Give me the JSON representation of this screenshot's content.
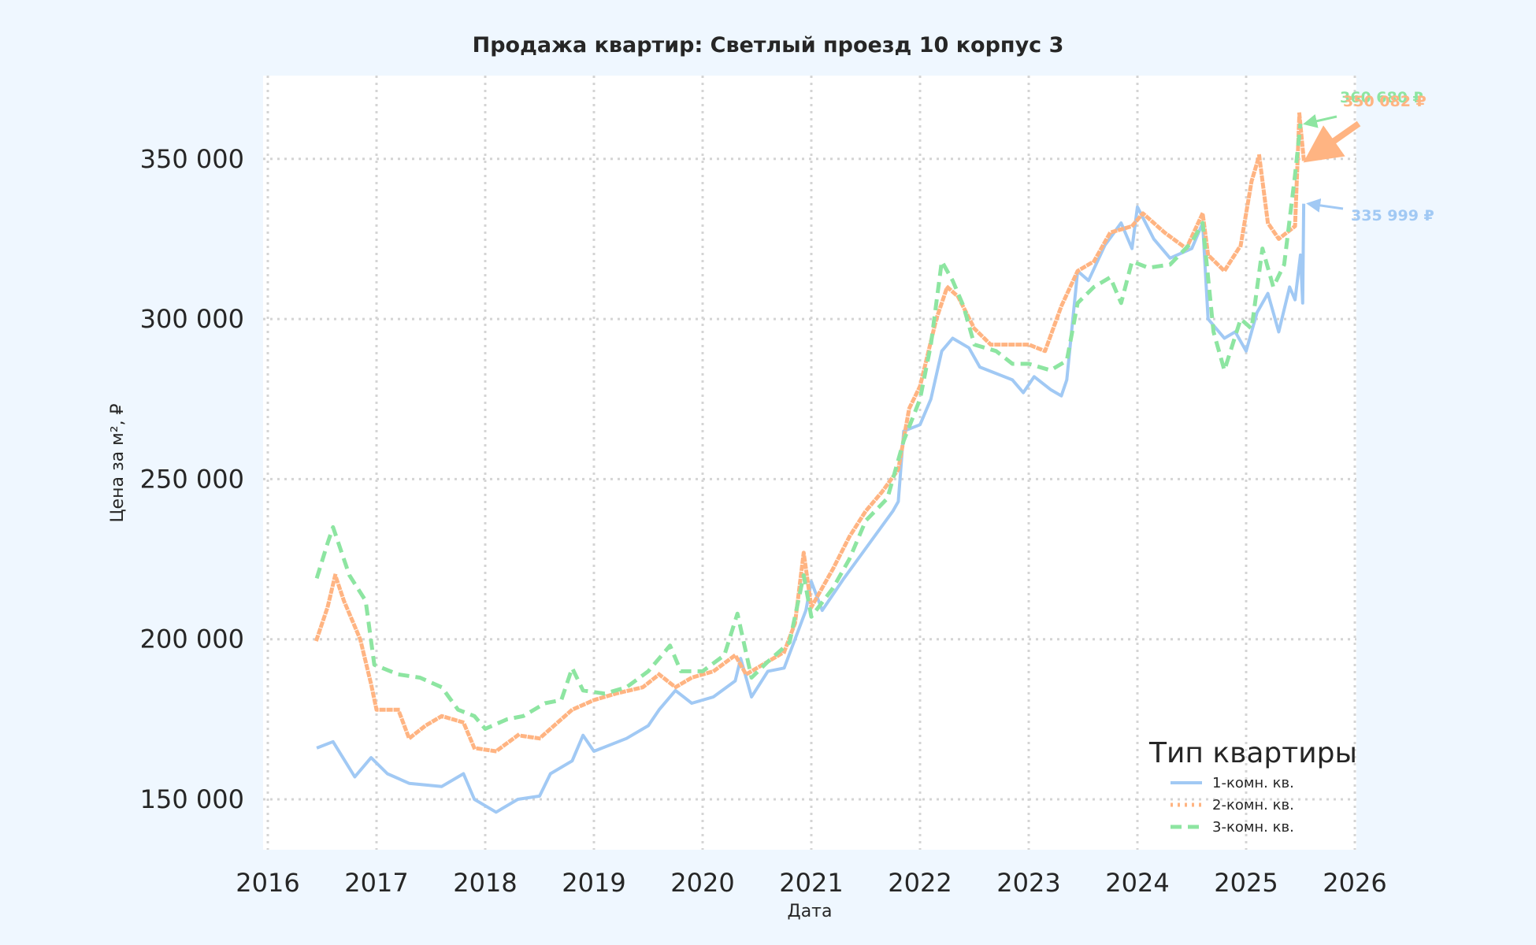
{
  "colors": {
    "figure_bg": "#eff7ff",
    "plot_bg": "#ffffff",
    "grid": "#d4d4d4",
    "text": "#262626"
  },
  "chart_data": {
    "type": "line",
    "title": "Продажа квартир: Светлый проезд 10 корпус 3",
    "xlabel": "Дата",
    "ylabel": "Цена за м², ₽",
    "xlim": [
      2016,
      2026
    ],
    "ylim": [
      135000,
      375000
    ],
    "x_ticks": [
      "2016",
      "2017",
      "2018",
      "2019",
      "2020",
      "2021",
      "2022",
      "2023",
      "2024",
      "2025",
      "2026"
    ],
    "y_ticks": [
      {
        "value": 150000,
        "label": "150 000"
      },
      {
        "value": 200000,
        "label": "200 000"
      },
      {
        "value": 250000,
        "label": "250 000"
      },
      {
        "value": 300000,
        "label": "300 000"
      },
      {
        "value": 350000,
        "label": "350 000"
      }
    ],
    "grid": true,
    "legend": {
      "title": "Тип квартиры",
      "position": "lower right"
    },
    "series": [
      {
        "name": "1-комн. кв.",
        "color": "#a1c9f4",
        "style": "solid",
        "x": [
          2016.45,
          2016.6,
          2016.8,
          2016.95,
          2017.1,
          2017.3,
          2017.6,
          2017.8,
          2017.9,
          2018.1,
          2018.3,
          2018.5,
          2018.6,
          2018.8,
          2018.9,
          2019.0,
          2019.3,
          2019.5,
          2019.6,
          2019.75,
          2019.9,
          2020.1,
          2020.3,
          2020.35,
          2020.45,
          2020.6,
          2020.75,
          2020.85,
          2020.95,
          2021.0,
          2021.1,
          2021.3,
          2021.45,
          2021.6,
          2021.75,
          2021.8,
          2021.85,
          2022.0,
          2022.1,
          2022.2,
          2022.3,
          2022.45,
          2022.55,
          2022.7,
          2022.85,
          2022.95,
          2023.05,
          2023.2,
          2023.3,
          2023.35,
          2023.45,
          2023.55,
          2023.7,
          2023.85,
          2023.95,
          2024.0,
          2024.15,
          2024.3,
          2024.5,
          2024.6,
          2024.65,
          2024.8,
          2024.9,
          2025.0,
          2025.1,
          2025.2,
          2025.3,
          2025.4,
          2025.45,
          2025.5,
          2025.52,
          2025.53
        ],
        "values": [
          166000,
          168000,
          157000,
          163000,
          158000,
          155000,
          154000,
          158000,
          150000,
          146000,
          150000,
          151000,
          158000,
          162000,
          170000,
          165000,
          169000,
          173000,
          178000,
          184000,
          180000,
          182000,
          187000,
          194000,
          182000,
          190000,
          191000,
          200000,
          209000,
          218000,
          209000,
          219000,
          226000,
          233000,
          240000,
          243000,
          265000,
          267000,
          275000,
          290000,
          294000,
          291000,
          285000,
          283000,
          281000,
          277000,
          282000,
          278000,
          276000,
          281000,
          315000,
          312000,
          323000,
          330000,
          322000,
          335000,
          325000,
          319000,
          322000,
          330000,
          300000,
          294000,
          296000,
          290000,
          302000,
          308000,
          296000,
          310000,
          306000,
          320000,
          305000,
          336000
        ]
      },
      {
        "name": "2-комн. кв.",
        "color": "#ffb482",
        "style": "dotted",
        "x": [
          2016.45,
          2016.55,
          2016.62,
          2016.7,
          2016.85,
          2016.95,
          2017.0,
          2017.2,
          2017.3,
          2017.45,
          2017.6,
          2017.8,
          2017.9,
          2018.1,
          2018.3,
          2018.5,
          2018.6,
          2018.8,
          2019.0,
          2019.2,
          2019.45,
          2019.6,
          2019.75,
          2019.9,
          2020.1,
          2020.3,
          2020.4,
          2020.6,
          2020.75,
          2020.85,
          2020.93,
          2021.0,
          2021.2,
          2021.35,
          2021.5,
          2021.65,
          2021.8,
          2021.9,
          2022.0,
          2022.15,
          2022.25,
          2022.35,
          2022.5,
          2022.65,
          2022.85,
          2023.0,
          2023.15,
          2023.3,
          2023.45,
          2023.6,
          2023.75,
          2023.95,
          2024.05,
          2024.25,
          2024.45,
          2024.6,
          2024.65,
          2024.8,
          2024.95,
          2025.05,
          2025.12,
          2025.2,
          2025.3,
          2025.45,
          2025.49,
          2025.53
        ],
        "values": [
          200000,
          210000,
          220000,
          212000,
          200000,
          186000,
          178000,
          178000,
          169000,
          173000,
          176000,
          174000,
          166000,
          165000,
          170000,
          169000,
          172000,
          178000,
          181000,
          183000,
          185000,
          189000,
          185000,
          188000,
          190000,
          195000,
          189000,
          193000,
          196000,
          205000,
          227000,
          210000,
          222000,
          232000,
          240000,
          246000,
          253000,
          272000,
          279000,
          300000,
          310000,
          307000,
          297000,
          292000,
          292000,
          292000,
          290000,
          304000,
          315000,
          318000,
          327000,
          329000,
          333000,
          327000,
          322000,
          333000,
          320000,
          315000,
          323000,
          343000,
          351000,
          330000,
          325000,
          329000,
          364000,
          350000
        ]
      },
      {
        "name": "3-комн. кв.",
        "color": "#8de5a1",
        "style": "dashed",
        "x": [
          2016.45,
          2016.55,
          2016.6,
          2016.75,
          2016.9,
          2016.98,
          2017.2,
          2017.4,
          2017.6,
          2017.75,
          2017.9,
          2018.0,
          2018.2,
          2018.35,
          2018.55,
          2018.7,
          2018.8,
          2018.9,
          2019.1,
          2019.3,
          2019.5,
          2019.7,
          2019.8,
          2020.0,
          2020.2,
          2020.32,
          2020.45,
          2020.6,
          2020.8,
          2020.93,
          2021.0,
          2021.2,
          2021.35,
          2021.5,
          2021.7,
          2021.85,
          2022.0,
          2022.1,
          2022.2,
          2022.3,
          2022.4,
          2022.5,
          2022.7,
          2022.85,
          2023.0,
          2023.2,
          2023.35,
          2023.45,
          2023.6,
          2023.75,
          2023.85,
          2023.95,
          2024.1,
          2024.3,
          2024.5,
          2024.6,
          2024.7,
          2024.8,
          2024.95,
          2025.05,
          2025.15,
          2025.25,
          2025.35,
          2025.45,
          2025.5
        ],
        "values": [
          219000,
          230000,
          235000,
          220000,
          212000,
          192000,
          189000,
          188000,
          185000,
          178000,
          176000,
          172000,
          175000,
          176000,
          180000,
          181000,
          191000,
          184000,
          183000,
          185000,
          190000,
          198000,
          190000,
          190000,
          195000,
          208000,
          188000,
          193000,
          199000,
          220000,
          207000,
          216000,
          225000,
          237000,
          244000,
          262000,
          275000,
          292000,
          318000,
          312000,
          304000,
          292000,
          290000,
          286000,
          286000,
          284000,
          287000,
          305000,
          310000,
          313000,
          305000,
          318000,
          316000,
          317000,
          324000,
          330000,
          296000,
          284000,
          300000,
          297000,
          322000,
          310000,
          317000,
          345000,
          361000
        ]
      }
    ],
    "annotations": [
      {
        "series": "3-комн. кв.",
        "text": "360 680 ₽",
        "color": "#8de5a1",
        "point": [
          2025.5,
          361000
        ],
        "text_pos": [
          1701,
          130
        ],
        "arrow_from": [
          1697,
          148
        ]
      },
      {
        "series": "2-комн. кв.",
        "text": "350 082 ₽",
        "color": "#ffb482",
        "point": [
          2025.53,
          350000
        ],
        "text_pos": [
          1705,
          135
        ],
        "arrow_from": [
          1725,
          157
        ]
      },
      {
        "series": "1-комн. кв.",
        "text": "335 999 ₽",
        "color": "#a1c9f4",
        "point": [
          2025.53,
          336000
        ],
        "text_pos": [
          1715,
          280
        ],
        "arrow_from": [
          1705,
          265
        ]
      }
    ]
  }
}
